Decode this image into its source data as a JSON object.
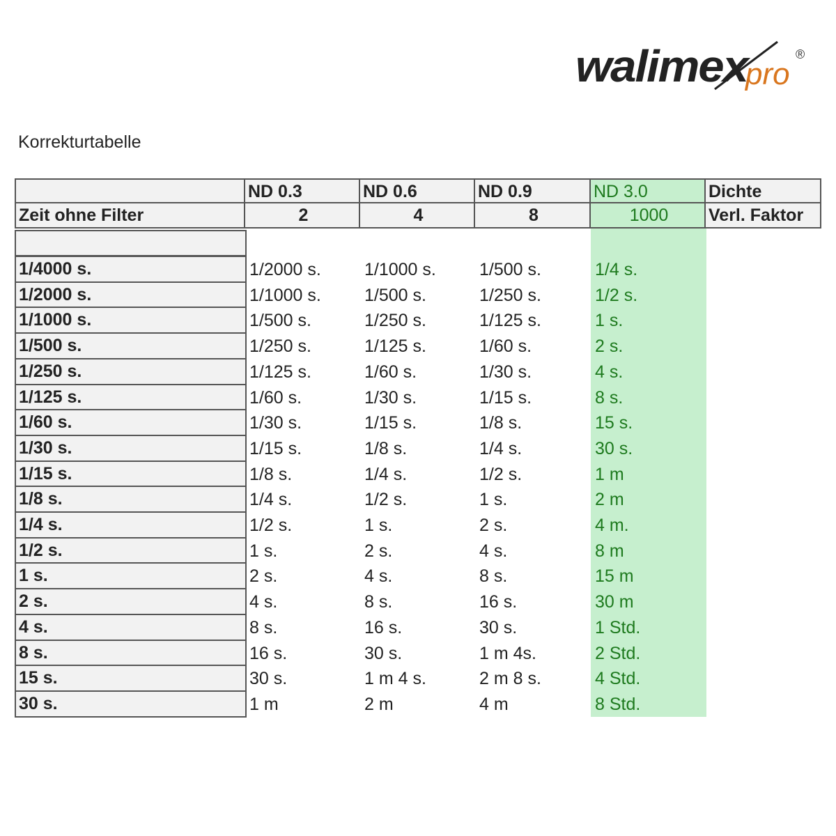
{
  "logo": {
    "main": "walimex",
    "suffix": "pro",
    "registered": "®"
  },
  "title": "Korrekturtabelle",
  "colors": {
    "green_fill": "#c6efce",
    "green_text": "#1e7a1e",
    "logo_orange": "#d9761e",
    "header_fill": "#f2f2f2"
  },
  "header": {
    "row1": [
      "",
      "ND 0.3",
      "ND 0.6",
      "ND 0.9",
      "ND 3.0",
      "Dichte"
    ],
    "row2": [
      "Zeit ohne Filter",
      "2",
      "4",
      "8",
      "1000",
      "Verl. Faktor"
    ]
  },
  "rows": [
    [
      "1/4000 s.",
      "1/2000 s.",
      "1/1000 s.",
      "1/500 s.",
      "1/4 s."
    ],
    [
      "1/2000 s.",
      "1/1000 s.",
      "1/500 s.",
      "1/250 s.",
      "1/2 s."
    ],
    [
      "1/1000 s.",
      "1/500 s.",
      "1/250 s.",
      "1/125 s.",
      "1 s."
    ],
    [
      "1/500 s.",
      "1/250 s.",
      "1/125 s.",
      "1/60 s.",
      "2 s."
    ],
    [
      "1/250 s.",
      "1/125 s.",
      "1/60 s.",
      "1/30 s.",
      "4 s."
    ],
    [
      "1/125 s.",
      "1/60 s.",
      "1/30 s.",
      "1/15 s.",
      "8 s."
    ],
    [
      "1/60 s.",
      "1/30 s.",
      "1/15 s.",
      "1/8 s.",
      "15 s."
    ],
    [
      "1/30 s.",
      "1/15 s.",
      "1/8 s.",
      "1/4 s.",
      "30 s."
    ],
    [
      "1/15 s.",
      "1/8 s.",
      "1/4 s.",
      "1/2 s.",
      "1 m"
    ],
    [
      "1/8 s.",
      "1/4 s.",
      "1/2 s.",
      "1 s.",
      "2 m"
    ],
    [
      "1/4 s.",
      "1/2 s.",
      "1 s.",
      "2 s.",
      "4 m."
    ],
    [
      "1/2 s.",
      "1 s.",
      "2 s.",
      "4 s.",
      "8 m"
    ],
    [
      "1 s.",
      "2 s.",
      "4 s.",
      "8 s.",
      "15 m"
    ],
    [
      "2 s.",
      "4 s.",
      "8 s.",
      "16 s.",
      "30 m"
    ],
    [
      "4 s.",
      "8 s.",
      "16 s.",
      "30 s.",
      "1 Std."
    ],
    [
      "8 s.",
      "16 s.",
      "30 s.",
      "1 m 4s.",
      "2 Std."
    ],
    [
      "15 s.",
      "30 s.",
      "1 m 4 s.",
      "2 m 8 s.",
      "4 Std."
    ],
    [
      "30 s.",
      "1 m",
      "2 m",
      "4 m",
      "8 Std."
    ]
  ]
}
